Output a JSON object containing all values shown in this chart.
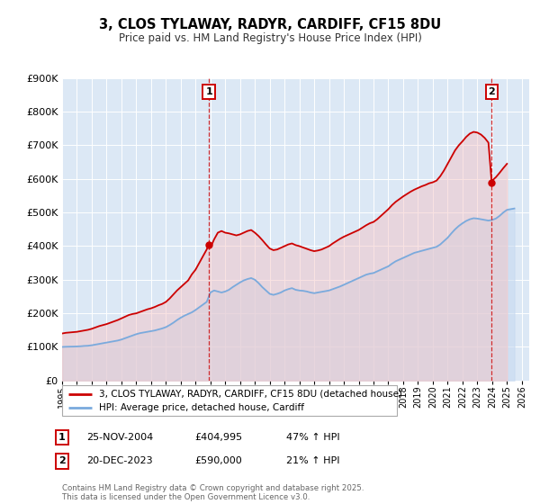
{
  "title": "3, CLOS TYLAWAY, RADYR, CARDIFF, CF15 8DU",
  "subtitle": "Price paid vs. HM Land Registry's House Price Index (HPI)",
  "ylim": [
    0,
    900000
  ],
  "xlim_start": 1995.0,
  "xlim_end": 2026.5,
  "plot_bg_color": "#dce8f5",
  "grid_color": "#ffffff",
  "legend1_label": "3, CLOS TYLAWAY, RADYR, CARDIFF, CF15 8DU (detached house)",
  "legend2_label": "HPI: Average price, detached house, Cardiff",
  "marker1_date": 2004.9,
  "marker1_value": 404995,
  "marker1_label": "1",
  "marker2_date": 2023.97,
  "marker2_value": 590000,
  "marker2_label": "2",
  "vline1_date": 2004.9,
  "vline2_date": 2023.97,
  "annotation1_date": "25-NOV-2004",
  "annotation1_price": "£404,995",
  "annotation1_hpi": "47% ↑ HPI",
  "annotation2_date": "20-DEC-2023",
  "annotation2_price": "£590,000",
  "annotation2_hpi": "21% ↑ HPI",
  "footer": "Contains HM Land Registry data © Crown copyright and database right 2025.\nThis data is licensed under the Open Government Licence v3.0.",
  "red_line_color": "#cc0000",
  "blue_line_color": "#7aaadd",
  "red_fill_color": "#f5c0c0",
  "blue_fill_color": "#c5d8f0",
  "hpi_series": [
    [
      1995.0,
      100000
    ],
    [
      1995.25,
      100500
    ],
    [
      1995.5,
      100800
    ],
    [
      1995.75,
      101000
    ],
    [
      1996.0,
      101500
    ],
    [
      1996.25,
      102000
    ],
    [
      1996.5,
      103000
    ],
    [
      1996.75,
      103500
    ],
    [
      1997.0,
      105000
    ],
    [
      1997.25,
      107000
    ],
    [
      1997.5,
      109000
    ],
    [
      1997.75,
      111000
    ],
    [
      1998.0,
      113000
    ],
    [
      1998.25,
      115000
    ],
    [
      1998.5,
      117000
    ],
    [
      1998.75,
      119000
    ],
    [
      1999.0,
      122000
    ],
    [
      1999.25,
      126000
    ],
    [
      1999.5,
      130000
    ],
    [
      1999.75,
      134000
    ],
    [
      2000.0,
      138000
    ],
    [
      2000.25,
      141000
    ],
    [
      2000.5,
      143000
    ],
    [
      2000.75,
      145000
    ],
    [
      2001.0,
      147000
    ],
    [
      2001.25,
      149000
    ],
    [
      2001.5,
      152000
    ],
    [
      2001.75,
      155000
    ],
    [
      2002.0,
      159000
    ],
    [
      2002.25,
      165000
    ],
    [
      2002.5,
      172000
    ],
    [
      2002.75,
      180000
    ],
    [
      2003.0,
      187000
    ],
    [
      2003.25,
      193000
    ],
    [
      2003.5,
      198000
    ],
    [
      2003.75,
      203000
    ],
    [
      2004.0,
      210000
    ],
    [
      2004.25,
      218000
    ],
    [
      2004.5,
      226000
    ],
    [
      2004.75,
      234000
    ],
    [
      2005.0,
      262000
    ],
    [
      2005.25,
      268000
    ],
    [
      2005.5,
      265000
    ],
    [
      2005.75,
      262000
    ],
    [
      2006.0,
      265000
    ],
    [
      2006.25,
      270000
    ],
    [
      2006.5,
      278000
    ],
    [
      2006.75,
      285000
    ],
    [
      2007.0,
      292000
    ],
    [
      2007.25,
      298000
    ],
    [
      2007.5,
      302000
    ],
    [
      2007.75,
      305000
    ],
    [
      2008.0,
      300000
    ],
    [
      2008.25,
      290000
    ],
    [
      2008.5,
      278000
    ],
    [
      2008.75,
      268000
    ],
    [
      2009.0,
      258000
    ],
    [
      2009.25,
      255000
    ],
    [
      2009.5,
      258000
    ],
    [
      2009.75,
      262000
    ],
    [
      2010.0,
      268000
    ],
    [
      2010.25,
      272000
    ],
    [
      2010.5,
      275000
    ],
    [
      2010.75,
      270000
    ],
    [
      2011.0,
      268000
    ],
    [
      2011.25,
      267000
    ],
    [
      2011.5,
      265000
    ],
    [
      2011.75,
      262000
    ],
    [
      2012.0,
      260000
    ],
    [
      2012.25,
      262000
    ],
    [
      2012.5,
      264000
    ],
    [
      2012.75,
      266000
    ],
    [
      2013.0,
      268000
    ],
    [
      2013.25,
      272000
    ],
    [
      2013.5,
      276000
    ],
    [
      2013.75,
      280000
    ],
    [
      2014.0,
      285000
    ],
    [
      2014.25,
      290000
    ],
    [
      2014.5,
      295000
    ],
    [
      2014.75,
      300000
    ],
    [
      2015.0,
      305000
    ],
    [
      2015.25,
      310000
    ],
    [
      2015.5,
      315000
    ],
    [
      2015.75,
      318000
    ],
    [
      2016.0,
      320000
    ],
    [
      2016.25,
      325000
    ],
    [
      2016.5,
      330000
    ],
    [
      2016.75,
      335000
    ],
    [
      2017.0,
      340000
    ],
    [
      2017.25,
      348000
    ],
    [
      2017.5,
      355000
    ],
    [
      2017.75,
      360000
    ],
    [
      2018.0,
      365000
    ],
    [
      2018.25,
      370000
    ],
    [
      2018.5,
      375000
    ],
    [
      2018.75,
      380000
    ],
    [
      2019.0,
      383000
    ],
    [
      2019.25,
      386000
    ],
    [
      2019.5,
      389000
    ],
    [
      2019.75,
      392000
    ],
    [
      2020.0,
      395000
    ],
    [
      2020.25,
      398000
    ],
    [
      2020.5,
      405000
    ],
    [
      2020.75,
      415000
    ],
    [
      2021.0,
      425000
    ],
    [
      2021.25,
      438000
    ],
    [
      2021.5,
      450000
    ],
    [
      2021.75,
      460000
    ],
    [
      2022.0,
      468000
    ],
    [
      2022.25,
      475000
    ],
    [
      2022.5,
      480000
    ],
    [
      2022.75,
      483000
    ],
    [
      2023.0,
      482000
    ],
    [
      2023.25,
      480000
    ],
    [
      2023.5,
      478000
    ],
    [
      2023.75,
      476000
    ],
    [
      2024.0,
      478000
    ],
    [
      2024.25,
      482000
    ],
    [
      2024.5,
      490000
    ],
    [
      2024.75,
      500000
    ],
    [
      2025.0,
      508000
    ],
    [
      2025.5,
      512000
    ]
  ],
  "price_series": [
    [
      1995.0,
      140000
    ],
    [
      1995.25,
      142000
    ],
    [
      1995.5,
      143000
    ],
    [
      1995.75,
      144000
    ],
    [
      1996.0,
      145000
    ],
    [
      1996.25,
      147000
    ],
    [
      1996.5,
      149000
    ],
    [
      1996.75,
      151000
    ],
    [
      1997.0,
      154000
    ],
    [
      1997.25,
      158000
    ],
    [
      1997.5,
      162000
    ],
    [
      1997.75,
      165000
    ],
    [
      1998.0,
      168000
    ],
    [
      1998.25,
      172000
    ],
    [
      1998.5,
      176000
    ],
    [
      1998.75,
      180000
    ],
    [
      1999.0,
      185000
    ],
    [
      1999.25,
      190000
    ],
    [
      1999.5,
      195000
    ],
    [
      1999.75,
      198000
    ],
    [
      2000.0,
      200000
    ],
    [
      2000.25,
      204000
    ],
    [
      2000.5,
      208000
    ],
    [
      2000.75,
      212000
    ],
    [
      2001.0,
      215000
    ],
    [
      2001.25,
      219000
    ],
    [
      2001.5,
      224000
    ],
    [
      2001.75,
      228000
    ],
    [
      2002.0,
      234000
    ],
    [
      2002.25,
      244000
    ],
    [
      2002.5,
      256000
    ],
    [
      2002.75,
      268000
    ],
    [
      2003.0,
      278000
    ],
    [
      2003.25,
      288000
    ],
    [
      2003.5,
      298000
    ],
    [
      2003.75,
      316000
    ],
    [
      2004.0,
      330000
    ],
    [
      2004.25,
      350000
    ],
    [
      2004.5,
      370000
    ],
    [
      2004.75,
      390000
    ],
    [
      2004.9,
      404995
    ],
    [
      2005.0,
      395000
    ],
    [
      2005.25,
      420000
    ],
    [
      2005.5,
      440000
    ],
    [
      2005.75,
      445000
    ],
    [
      2006.0,
      440000
    ],
    [
      2006.25,
      438000
    ],
    [
      2006.5,
      435000
    ],
    [
      2006.75,
      432000
    ],
    [
      2007.0,
      435000
    ],
    [
      2007.25,
      440000
    ],
    [
      2007.5,
      445000
    ],
    [
      2007.75,
      448000
    ],
    [
      2008.0,
      440000
    ],
    [
      2008.25,
      430000
    ],
    [
      2008.5,
      418000
    ],
    [
      2008.75,
      405000
    ],
    [
      2009.0,
      393000
    ],
    [
      2009.25,
      388000
    ],
    [
      2009.5,
      390000
    ],
    [
      2009.75,
      395000
    ],
    [
      2010.0,
      400000
    ],
    [
      2010.25,
      405000
    ],
    [
      2010.5,
      408000
    ],
    [
      2010.75,
      403000
    ],
    [
      2011.0,
      400000
    ],
    [
      2011.25,
      396000
    ],
    [
      2011.5,
      392000
    ],
    [
      2011.75,
      388000
    ],
    [
      2012.0,
      385000
    ],
    [
      2012.25,
      387000
    ],
    [
      2012.5,
      390000
    ],
    [
      2012.75,
      395000
    ],
    [
      2013.0,
      400000
    ],
    [
      2013.25,
      408000
    ],
    [
      2013.5,
      415000
    ],
    [
      2013.75,
      422000
    ],
    [
      2014.0,
      428000
    ],
    [
      2014.25,
      433000
    ],
    [
      2014.5,
      438000
    ],
    [
      2014.75,
      443000
    ],
    [
      2015.0,
      448000
    ],
    [
      2015.25,
      455000
    ],
    [
      2015.5,
      462000
    ],
    [
      2015.75,
      468000
    ],
    [
      2016.0,
      472000
    ],
    [
      2016.25,
      480000
    ],
    [
      2016.5,
      490000
    ],
    [
      2016.75,
      500000
    ],
    [
      2017.0,
      510000
    ],
    [
      2017.25,
      522000
    ],
    [
      2017.5,
      532000
    ],
    [
      2017.75,
      540000
    ],
    [
      2018.0,
      548000
    ],
    [
      2018.25,
      555000
    ],
    [
      2018.5,
      562000
    ],
    [
      2018.75,
      568000
    ],
    [
      2019.0,
      573000
    ],
    [
      2019.25,
      578000
    ],
    [
      2019.5,
      582000
    ],
    [
      2019.75,
      587000
    ],
    [
      2020.0,
      590000
    ],
    [
      2020.25,
      595000
    ],
    [
      2020.5,
      608000
    ],
    [
      2020.75,
      625000
    ],
    [
      2021.0,
      645000
    ],
    [
      2021.25,
      665000
    ],
    [
      2021.5,
      685000
    ],
    [
      2021.75,
      700000
    ],
    [
      2022.0,
      712000
    ],
    [
      2022.25,
      725000
    ],
    [
      2022.5,
      735000
    ],
    [
      2022.75,
      740000
    ],
    [
      2023.0,
      738000
    ],
    [
      2023.25,
      732000
    ],
    [
      2023.5,
      722000
    ],
    [
      2023.75,
      708000
    ],
    [
      2023.97,
      590000
    ],
    [
      2024.0,
      595000
    ],
    [
      2024.25,
      605000
    ],
    [
      2024.5,
      618000
    ],
    [
      2024.75,
      632000
    ],
    [
      2025.0,
      645000
    ]
  ]
}
